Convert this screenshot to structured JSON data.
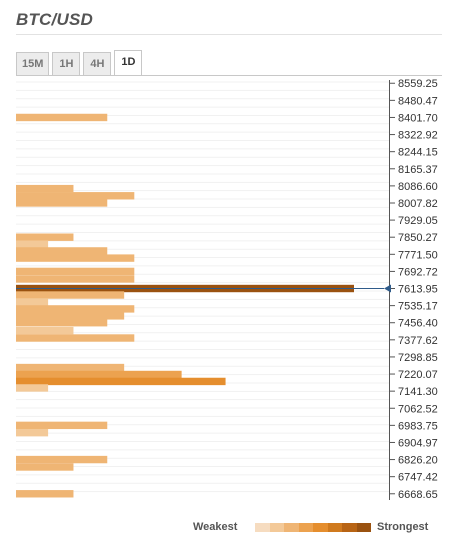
{
  "title": "BTC/USD",
  "tabs": [
    {
      "label": "15M",
      "active": false
    },
    {
      "label": "1H",
      "active": false
    },
    {
      "label": "4H",
      "active": false
    },
    {
      "label": "1D",
      "active": true
    }
  ],
  "chart_data": {
    "type": "bar",
    "orientation": "horizontal",
    "current_price": 7613.95,
    "ylim": [
      6640,
      8565
    ],
    "tick_labels": [
      "8559.25",
      "8480.47",
      "8401.70",
      "8322.92",
      "8244.15",
      "8165.37",
      "8086.60",
      "8007.82",
      "7929.05",
      "7850.27",
      "7771.50",
      "7692.72",
      "7613.95",
      "7535.17",
      "7456.40",
      "7377.62",
      "7298.85",
      "7220.07",
      "7141.30",
      "7062.52",
      "6983.75",
      "6904.97",
      "6826.20",
      "6747.42",
      "6668.65"
    ],
    "bars": [
      {
        "price": 8401.7,
        "strength": 0.27,
        "level": 2
      },
      {
        "price": 8074.0,
        "strength": 0.17,
        "level": 2
      },
      {
        "price": 8041.0,
        "strength": 0.35,
        "level": 2
      },
      {
        "price": 8008.0,
        "strength": 0.27,
        "level": 2
      },
      {
        "price": 7850.27,
        "strength": 0.17,
        "level": 2
      },
      {
        "price": 7818.0,
        "strength": 0.095,
        "level": 1
      },
      {
        "price": 7787.0,
        "strength": 0.27,
        "level": 2
      },
      {
        "price": 7754.0,
        "strength": 0.35,
        "level": 2
      },
      {
        "price": 7692.72,
        "strength": 0.35,
        "level": 2
      },
      {
        "price": 7658.0,
        "strength": 0.35,
        "level": 2
      },
      {
        "price": 7613.95,
        "strength": 1.0,
        "level": 7
      },
      {
        "price": 7584.0,
        "strength": 0.32,
        "level": 2
      },
      {
        "price": 7552.0,
        "strength": 0.095,
        "level": 1
      },
      {
        "price": 7520.0,
        "strength": 0.35,
        "level": 2
      },
      {
        "price": 7488.0,
        "strength": 0.32,
        "level": 2
      },
      {
        "price": 7456.4,
        "strength": 0.27,
        "level": 2
      },
      {
        "price": 7420.0,
        "strength": 0.17,
        "level": 1
      },
      {
        "price": 7386.0,
        "strength": 0.35,
        "level": 2
      },
      {
        "price": 7250.0,
        "strength": 0.32,
        "level": 2
      },
      {
        "price": 7218.0,
        "strength": 0.49,
        "level": 3
      },
      {
        "price": 7186.0,
        "strength": 0.62,
        "level": 4
      },
      {
        "price": 7156.0,
        "strength": 0.095,
        "level": 1
      },
      {
        "price": 6983.75,
        "strength": 0.27,
        "level": 2
      },
      {
        "price": 6950.0,
        "strength": 0.095,
        "level": 1
      },
      {
        "price": 6826.2,
        "strength": 0.27,
        "level": 2
      },
      {
        "price": 6792.0,
        "strength": 0.17,
        "level": 2
      },
      {
        "price": 6668.65,
        "strength": 0.17,
        "level": 2
      }
    ],
    "colors": {
      "levels": [
        "#f6dcc0",
        "#f3c998",
        "#efb574",
        "#eca24f",
        "#e58e2e",
        "#d07a1e",
        "#b86414",
        "#9a5210"
      ],
      "current_marker": "#2f5b8a"
    }
  },
  "legend": {
    "weakest_label": "Weakest",
    "strongest_label": "Strongest",
    "scale_colors": [
      "#f6dcc0",
      "#f3c998",
      "#efb574",
      "#eca24f",
      "#e58e2e",
      "#d07a1e",
      "#b86414",
      "#9a5210"
    ]
  }
}
